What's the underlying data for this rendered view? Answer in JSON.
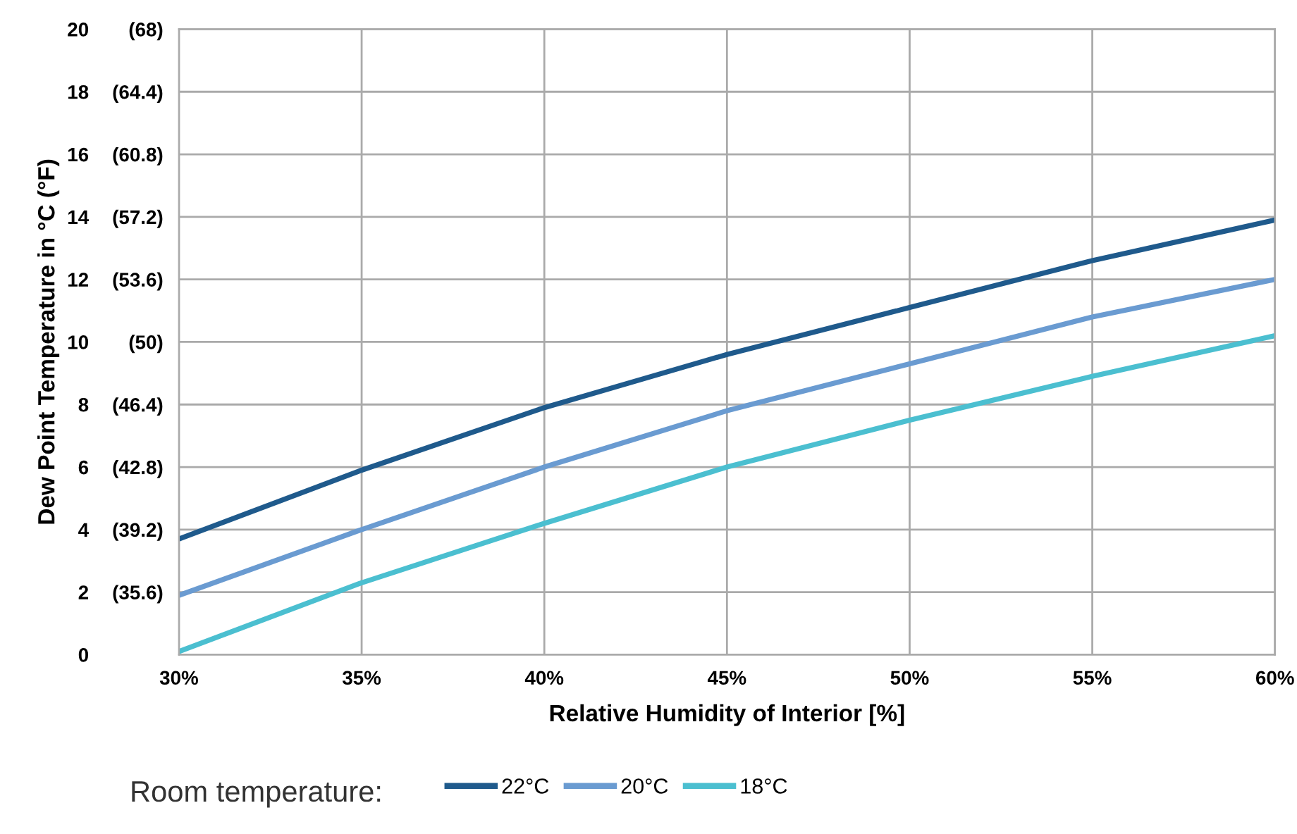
{
  "chart_data": {
    "type": "line",
    "xlabel": "Relative Humidity of Interior [%]",
    "ylabel": "Dew Point Temperature in °C (°F)",
    "legend_title": "Room temperature:",
    "x": [
      30,
      35,
      40,
      45,
      50,
      55,
      60
    ],
    "series": [
      {
        "name": "22°C",
        "color": "#1f5a8c",
        "values": [
          3.7,
          5.9,
          7.9,
          9.6,
          11.1,
          12.6,
          13.9
        ]
      },
      {
        "name": "20°C",
        "color": "#6a9bd1",
        "values": [
          1.9,
          4.0,
          6.0,
          7.8,
          9.3,
          10.8,
          12.0
        ]
      },
      {
        "name": "18°C",
        "color": "#4bbfd0",
        "values": [
          0.1,
          2.3,
          4.2,
          6.0,
          7.5,
          8.9,
          10.2
        ]
      }
    ],
    "xlim": [
      30,
      60
    ],
    "xticks": [
      {
        "value": 30,
        "label": "30%"
      },
      {
        "value": 35,
        "label": "35%"
      },
      {
        "value": 40,
        "label": "40%"
      },
      {
        "value": 45,
        "label": "45%"
      },
      {
        "value": 50,
        "label": "50%"
      },
      {
        "value": 55,
        "label": "55%"
      },
      {
        "value": 60,
        "label": "60%"
      }
    ],
    "ylim": [
      0,
      20
    ],
    "yticks": [
      0,
      2,
      4,
      6,
      8,
      10,
      12,
      14,
      16,
      18,
      20
    ],
    "y2lim": [
      32,
      68
    ],
    "y2ticks": [
      {
        "value": 32,
        "label": null
      },
      {
        "value": 35.6,
        "label": "(35.6)"
      },
      {
        "value": 39.2,
        "label": "(39.2)"
      },
      {
        "value": 42.8,
        "label": "(42.8)"
      },
      {
        "value": 46.4,
        "label": "(46.4)"
      },
      {
        "value": 50,
        "label": "(50)"
      },
      {
        "value": 53.6,
        "label": "(53.6)"
      },
      {
        "value": 57.2,
        "label": "(57.2)"
      },
      {
        "value": 60.8,
        "label": "(60.8)"
      },
      {
        "value": 64.4,
        "label": "(64.4)"
      },
      {
        "value": 68,
        "label": "(68)"
      }
    ],
    "grid": true,
    "legend": "bottom",
    "marker": "none",
    "line_style": "solid"
  }
}
